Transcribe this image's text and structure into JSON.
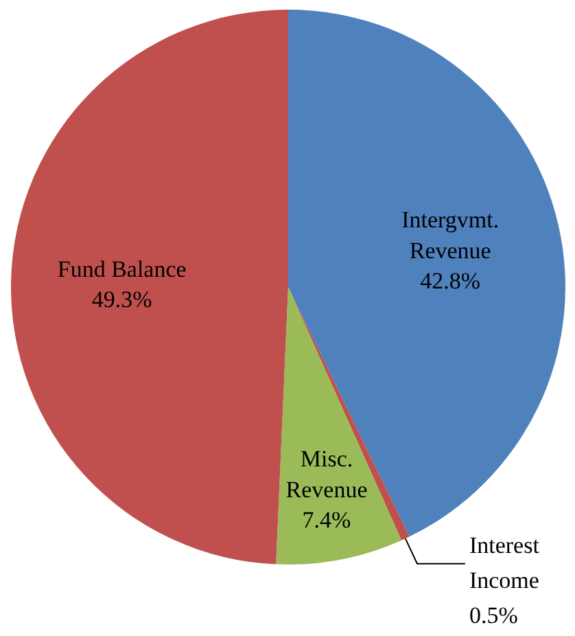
{
  "chart_data": {
    "type": "pie",
    "categories": [
      "Intergvmt.\nRevenue",
      "Interest\nIncome",
      "Misc.\nRevenue",
      "Fund Balance"
    ],
    "values": [
      42.8,
      0.5,
      7.4,
      49.3
    ],
    "colors": [
      "#4f81bd",
      "#c0504d",
      "#9bbb59",
      "#c0504d"
    ],
    "value_labels": [
      "42.8%",
      "0.5%",
      "7.4%",
      "49.3%"
    ]
  }
}
